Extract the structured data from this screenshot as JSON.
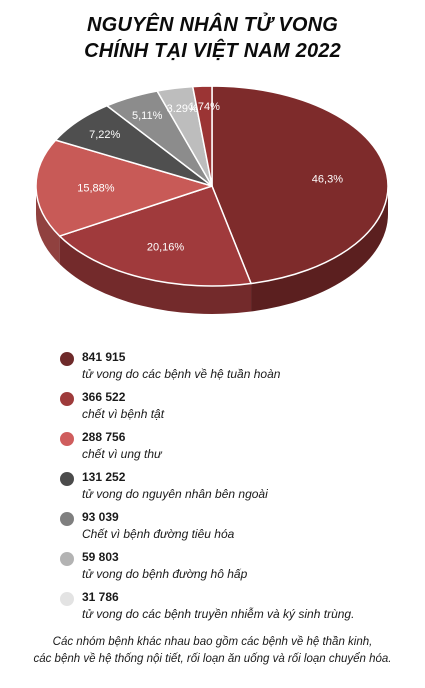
{
  "title": {
    "line1": "NGUYÊN NHÂN TỬ VONG",
    "line2": "CHÍNH TẠI VIỆT NAM 2022"
  },
  "chart_data": {
    "type": "pie",
    "title": "NGUYÊN NHÂN TỬ VONG CHÍNH TẠI VIỆT NAM 2022",
    "slices": [
      {
        "label": "tử vong do các bệnh về hệ tuần hoàn",
        "value": 841915,
        "percent": 46.3,
        "percent_label": "46,3%",
        "color": "#7e2b2b"
      },
      {
        "label": "chết vì bệnh tật",
        "value": 366522,
        "percent": 20.16,
        "percent_label": "20,16%",
        "color": "#a03a3c"
      },
      {
        "label": "chết vì ung thư",
        "value": 288756,
        "percent": 15.88,
        "percent_label": "15,88%",
        "color": "#c85a57"
      },
      {
        "label": "tử vong do nguyên nhân bên ngoài",
        "value": 131252,
        "percent": 7.22,
        "percent_label": "7,22%",
        "color": "#4f4f4f"
      },
      {
        "label": "Chết vì bệnh đường tiêu hóa",
        "value": 93039,
        "percent": 5.11,
        "percent_label": "5,11%",
        "color": "#8c8c8c"
      },
      {
        "label": "tử vong do bệnh đường hô hấp",
        "value": 59803,
        "percent": 3.29,
        "percent_label": "3.29%",
        "color": "#bdbdbd"
      },
      {
        "label": "tử vong do các bệnh truyền nhiễm và ký sinh trùng.",
        "value": 31786,
        "percent": 1.74,
        "percent_label": "1.74%",
        "color": "#9b3434"
      }
    ]
  },
  "legend": [
    {
      "value": "841 915",
      "desc": "tử vong do các bệnh về hệ tuần hoàn",
      "color": "#6e2a2a"
    },
    {
      "value": "366 522",
      "desc": "chết vì bệnh tật",
      "color": "#9e3b3b"
    },
    {
      "value": "288 756",
      "desc": "chết vì ung thư",
      "color": "#cf5d5d"
    },
    {
      "value": "131 252",
      "desc": "tử vong do nguyên nhân bên ngoài",
      "color": "#4b4b4b"
    },
    {
      "value": "93 039",
      "desc": "Chết vì bệnh đường tiêu hóa",
      "color": "#7f7f7f"
    },
    {
      "value": "59 803",
      "desc": "tử vong do bệnh đường hô hấp",
      "color": "#b3b3b3"
    },
    {
      "value": "31 786",
      "desc": "tử vong do các bệnh truyền nhiễm và ký sinh trùng.",
      "color": "#e3e3e3"
    }
  ],
  "footnote": {
    "line1": "Các nhóm bệnh khác nhau bao gồm các bệnh về hệ thần kinh,",
    "line2": "các bệnh về hệ thống nội tiết, rối loạn ăn uống và rối loạn chuyển hóa."
  }
}
